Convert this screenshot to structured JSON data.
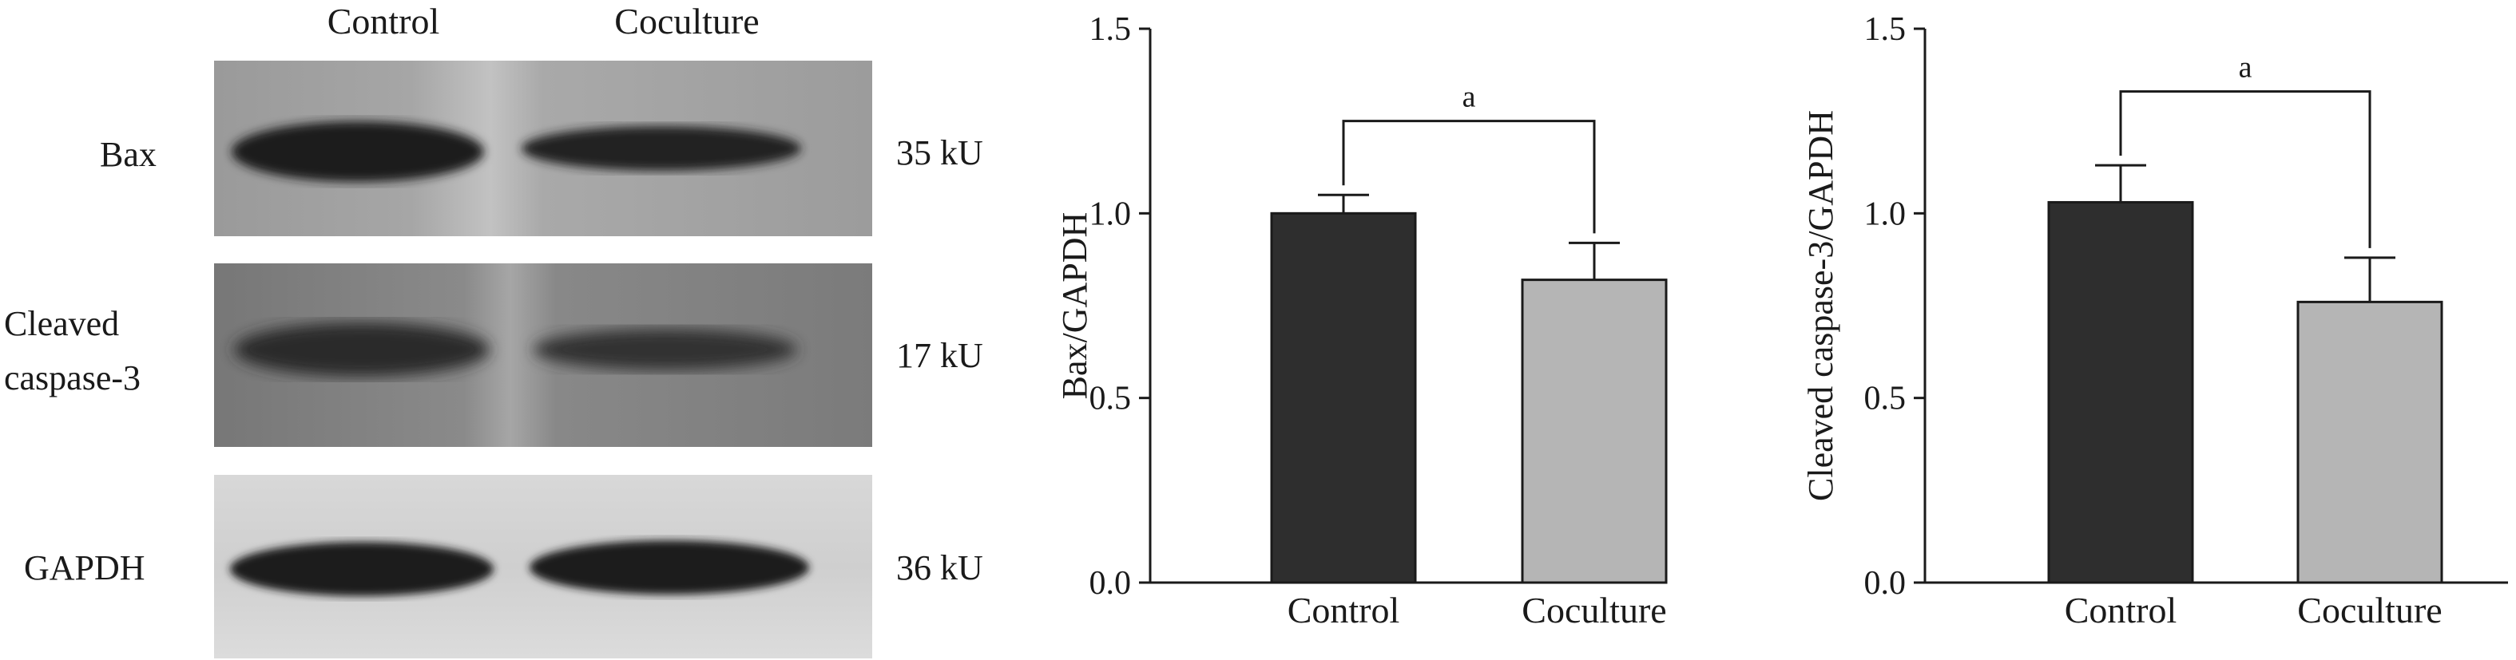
{
  "western_blot": {
    "lane_labels": [
      "Control",
      "Coculture"
    ],
    "rows": [
      {
        "protein": "Bax",
        "molecular_weight": "35 kU"
      },
      {
        "protein": "Cleaved\ncaspase-3",
        "protein_line1": "Cleaved",
        "protein_line2": "caspase-3",
        "molecular_weight": "17 kU"
      },
      {
        "protein": "GAPDH",
        "molecular_weight": "36 kU"
      }
    ]
  },
  "colors": {
    "control_bar": "#2e2e2e",
    "coculture_bar": "#b5b5b5",
    "axis": "#1a1a1a"
  },
  "chart_data": [
    {
      "type": "bar",
      "title": "",
      "xlabel": "",
      "ylabel": "Bax/GAPDH",
      "categories": [
        "Control",
        "Coculture"
      ],
      "values": [
        1.0,
        0.82
      ],
      "errors": [
        0.05,
        0.1
      ],
      "ylim": [
        0.0,
        1.5
      ],
      "yticks": [
        "0.0",
        "0.5",
        "1.0",
        "1.5"
      ],
      "significance": {
        "label": "a",
        "between": [
          "Control",
          "Coculture"
        ]
      }
    },
    {
      "type": "bar",
      "title": "",
      "xlabel": "",
      "ylabel": "Cleaved caspase-3/GAPDH",
      "categories": [
        "Control",
        "Coculture"
      ],
      "values": [
        1.03,
        0.76
      ],
      "errors": [
        0.1,
        0.12
      ],
      "ylim": [
        0.0,
        1.5
      ],
      "yticks": [
        "0.0",
        "0.5",
        "1.0",
        "1.5"
      ],
      "significance": {
        "label": "a",
        "between": [
          "Control",
          "Coculture"
        ]
      }
    }
  ]
}
